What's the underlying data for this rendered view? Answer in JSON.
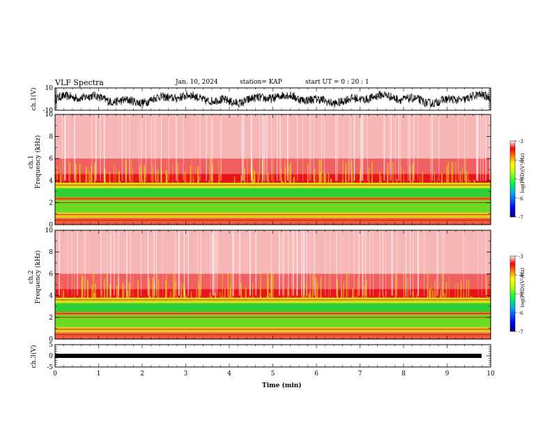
{
  "header": {
    "title": "VLF Spectra",
    "date": "Jan. 10, 2024",
    "station": "station= KAP",
    "start": "start UT = 0 : 20 : 1"
  },
  "chart_data": [
    {
      "type": "line",
      "ylabel": "ch.1(V)",
      "ylim": [
        -10,
        10
      ],
      "yticks": [
        "10",
        "-10"
      ],
      "xlim": [
        0,
        10
      ],
      "description_series": "waveform",
      "color": "#000000"
    },
    {
      "type": "heatmap",
      "ylabel_line1": "ch.1",
      "ylabel_line2": "Frequency (kHz)",
      "ylim": [
        0,
        10
      ],
      "yticks": [
        "0",
        "2",
        "4",
        "6",
        "8",
        "10"
      ],
      "xlim": [
        0,
        10
      ],
      "colorbar": {
        "label": "log(PSD)(V²/Hz)",
        "ticks": [
          "-3",
          "-4",
          "-5",
          "-6",
          "-7"
        ],
        "range": [
          -7,
          -3
        ]
      }
    },
    {
      "type": "heatmap",
      "ylabel_line1": "ch.2",
      "ylabel_line2": "Frequency (kHz)",
      "ylim": [
        0,
        10
      ],
      "yticks": [
        "0",
        "2",
        "4",
        "6",
        "8",
        "10"
      ],
      "xlim": [
        0,
        10
      ],
      "colorbar": {
        "label": "log(PSD)(V²/Hz)",
        "ticks": [
          "-3",
          "-4",
          "-5",
          "-6",
          "-7"
        ],
        "range": [
          -7,
          -3
        ]
      }
    },
    {
      "type": "line",
      "ylabel": "ch.3(V)",
      "ylim": [
        -5,
        5
      ],
      "yticks": [
        "5",
        "0",
        "-5"
      ],
      "xlim": [
        0,
        10
      ],
      "xlabel": "Time (min)",
      "xticks": [
        "0",
        "1",
        "2",
        "3",
        "4",
        "5",
        "6",
        "7",
        "8",
        "9",
        "10"
      ],
      "color": "#000000"
    }
  ],
  "colors": {
    "spectro_high": "#e8141a",
    "spectro_mid": "#f2e01c",
    "spectro_low": "#1fd12b",
    "spectro_bg": "#ffffff"
  }
}
